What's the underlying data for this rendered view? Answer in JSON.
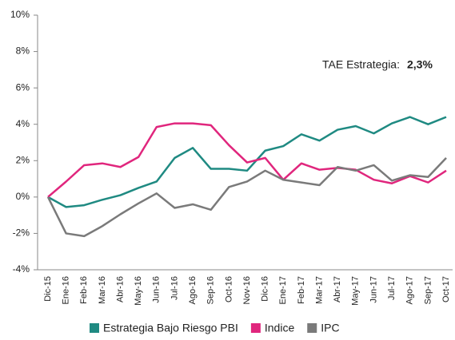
{
  "chart_data": {
    "type": "line",
    "categories": [
      "Dic-15",
      "Ene-16",
      "Feb-16",
      "Mar-16",
      "Abr-16",
      "May-16",
      "Jun-16",
      "Jul-16",
      "Ago-16",
      "Sep-16",
      "Oct-16",
      "Nov-16",
      "Dic-16",
      "Ene-17",
      "Feb-17",
      "Mar-17",
      "Abr-17",
      "May-17",
      "Jun-17",
      "Jul-17",
      "Ago-17",
      "Sep-17",
      "Oct-17"
    ],
    "series": [
      {
        "name": "Estrategia Bajo Riesgo PBI",
        "color": "#1f8a82",
        "values": [
          0,
          -0.55,
          -0.45,
          -0.15,
          0.1,
          0.5,
          0.85,
          2.15,
          2.7,
          1.55,
          1.55,
          1.45,
          2.55,
          2.8,
          3.45,
          3.1,
          3.7,
          3.9,
          3.5,
          4.05,
          4.4,
          4.0,
          4.4
        ]
      },
      {
        "name": "Indice",
        "color": "#e0267d",
        "values": [
          0,
          0.85,
          1.75,
          1.85,
          1.65,
          2.2,
          3.85,
          4.05,
          4.05,
          3.95,
          2.85,
          1.9,
          2.15,
          0.95,
          1.85,
          1.5,
          1.6,
          1.5,
          0.95,
          0.75,
          1.15,
          0.8,
          1.45
        ]
      },
      {
        "name": "IPC",
        "color": "#7a7a7a",
        "values": [
          0,
          -2.0,
          -2.15,
          -1.6,
          -0.95,
          -0.35,
          0.2,
          -0.6,
          -0.4,
          -0.7,
          0.55,
          0.85,
          1.45,
          0.95,
          0.8,
          0.65,
          1.65,
          1.45,
          1.75,
          0.9,
          1.2,
          1.1,
          2.15
        ]
      }
    ],
    "ylim": [
      -4,
      10
    ],
    "yticks": [
      {
        "value": -4,
        "label": "-4%"
      },
      {
        "value": -2,
        "label": "-2%"
      },
      {
        "value": 0,
        "label": "0%"
      },
      {
        "value": 2,
        "label": "2%"
      },
      {
        "value": 4,
        "label": "4%"
      },
      {
        "value": 6,
        "label": "6%"
      },
      {
        "value": 8,
        "label": "8%"
      },
      {
        "value": 10,
        "label": "10%"
      }
    ],
    "annotation": {
      "label": "TAE Estrategia:",
      "value": "2,3%"
    },
    "legend": "bottom"
  }
}
